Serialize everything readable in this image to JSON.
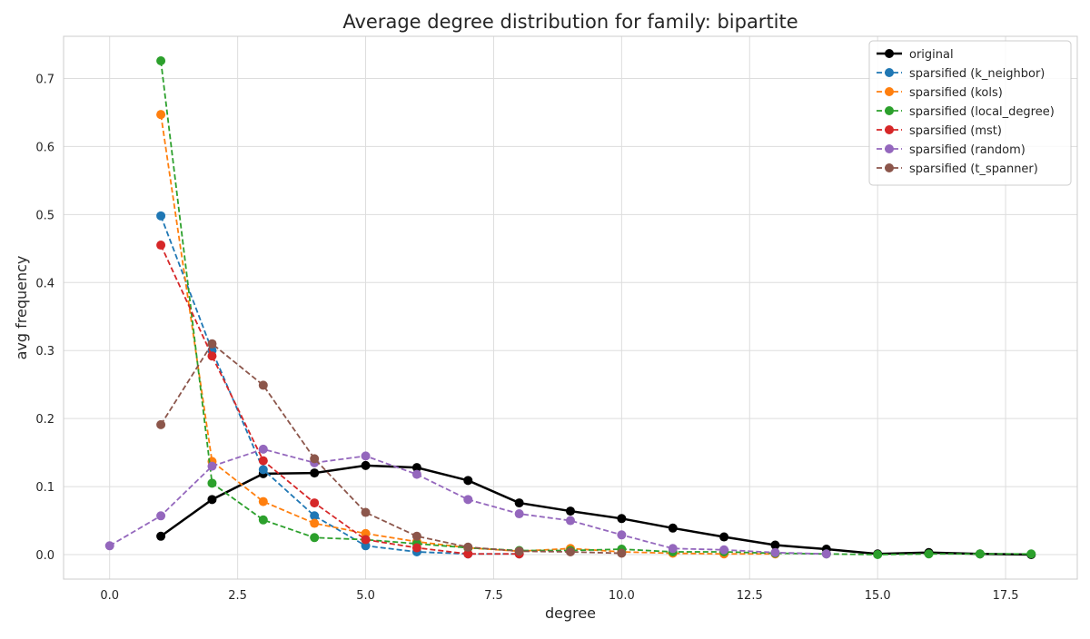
{
  "chart_data": {
    "type": "line",
    "title": "Average degree distribution for family: bipartite",
    "xlabel": "degree",
    "ylabel": "avg frequency",
    "xlim": [
      -0.9,
      18.9
    ],
    "ylim": [
      -0.036,
      0.762
    ],
    "xticks": [
      0.0,
      2.5,
      5.0,
      7.5,
      10.0,
      12.5,
      15.0,
      17.5
    ],
    "xtick_labels": [
      "0.0",
      "2.5",
      "5.0",
      "7.5",
      "10.0",
      "12.5",
      "15.0",
      "17.5"
    ],
    "yticks": [
      0.0,
      0.1,
      0.2,
      0.3,
      0.4,
      0.5,
      0.6,
      0.7
    ],
    "ytick_labels": [
      "0.0",
      "0.1",
      "0.2",
      "0.3",
      "0.4",
      "0.5",
      "0.6",
      "0.7"
    ],
    "grid": true,
    "legend_position": "top-right",
    "series": [
      {
        "name": "original",
        "color": "#000000",
        "style": "solid",
        "x": [
          1,
          2,
          3,
          4,
          5,
          6,
          7,
          8,
          9,
          10,
          11,
          12,
          13,
          14,
          15,
          16,
          17,
          18
        ],
        "y": [
          0.027,
          0.081,
          0.119,
          0.12,
          0.131,
          0.128,
          0.109,
          0.076,
          0.064,
          0.053,
          0.039,
          0.026,
          0.014,
          0.008,
          0.001,
          0.003,
          0.001,
          0.0
        ]
      },
      {
        "name": "sparsified (k_neighbor)",
        "color": "#1f77b4",
        "style": "dashed",
        "x": [
          1,
          2,
          3,
          4,
          5,
          6,
          7,
          8
        ],
        "y": [
          0.498,
          0.3,
          0.125,
          0.057,
          0.013,
          0.004,
          0.001,
          0.001
        ]
      },
      {
        "name": "sparsified (kols)",
        "color": "#ff7f0e",
        "style": "dashed",
        "x": [
          1,
          2,
          3,
          4,
          5,
          6,
          7,
          8,
          9,
          10,
          11,
          12,
          13
        ],
        "y": [
          0.647,
          0.137,
          0.078,
          0.046,
          0.031,
          0.019,
          0.01,
          0.005,
          0.009,
          0.004,
          0.002,
          0.001,
          0.001
        ]
      },
      {
        "name": "sparsified (local_degree)",
        "color": "#2ca02c",
        "style": "dashed",
        "x": [
          1,
          2,
          3,
          4,
          5,
          6,
          7,
          8,
          9,
          10,
          11,
          12,
          13,
          14,
          15,
          16,
          17,
          18
        ],
        "y": [
          0.726,
          0.105,
          0.051,
          0.025,
          0.022,
          0.016,
          0.01,
          0.006,
          0.006,
          0.008,
          0.004,
          0.004,
          0.002,
          0.001,
          0.0,
          0.001,
          0.001,
          0.001
        ]
      },
      {
        "name": "sparsified (mst)",
        "color": "#d62728",
        "style": "dashed",
        "x": [
          1,
          2,
          3,
          4,
          5,
          6,
          7,
          8
        ],
        "y": [
          0.455,
          0.292,
          0.138,
          0.076,
          0.022,
          0.01,
          0.001,
          0.001
        ]
      },
      {
        "name": "sparsified (random)",
        "color": "#9467bd",
        "style": "dashed",
        "x": [
          0,
          1,
          2,
          3,
          4,
          5,
          6,
          7,
          8,
          9,
          10,
          11,
          12,
          13,
          14
        ],
        "y": [
          0.013,
          0.057,
          0.13,
          0.155,
          0.135,
          0.145,
          0.118,
          0.081,
          0.06,
          0.05,
          0.029,
          0.009,
          0.007,
          0.003,
          0.001
        ]
      },
      {
        "name": "sparsified (t_spanner)",
        "color": "#8c564b",
        "style": "dashed",
        "x": [
          1,
          2,
          3,
          4,
          5,
          6,
          7,
          8,
          9,
          10
        ],
        "y": [
          0.191,
          0.31,
          0.249,
          0.141,
          0.062,
          0.027,
          0.011,
          0.005,
          0.004,
          0.002
        ]
      }
    ]
  }
}
